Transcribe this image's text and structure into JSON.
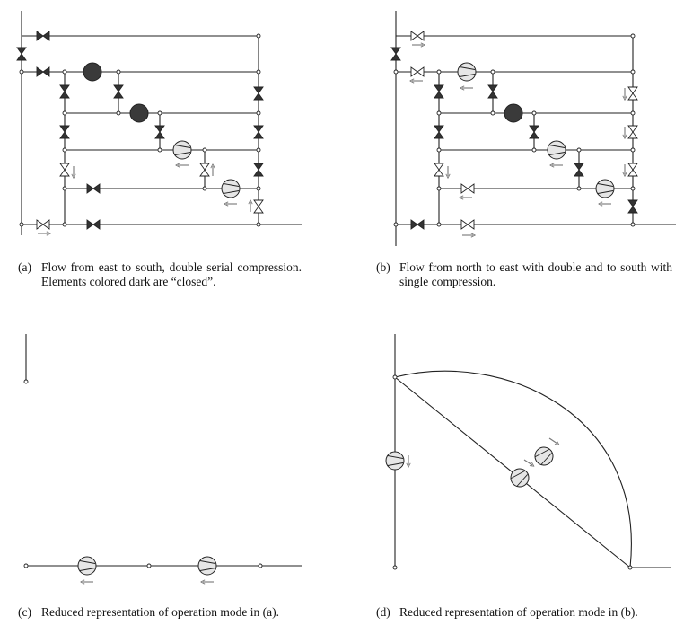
{
  "colors": {
    "line": "#222222",
    "closed_fill": "#333333",
    "open_fill": "#ffffff",
    "compressor_open": "#e6e6e6",
    "compressor_closed": "#3a3a3a",
    "flow_arrow": "#777777"
  },
  "captions": {
    "a": {
      "label": "(a)",
      "text": "Flow from east to south, double serial compression. Elements colored dark are “closed”."
    },
    "b": {
      "label": "(b)",
      "text": "Flow from north to east with double and to south with single compression."
    },
    "c": {
      "label": "(c)",
      "text": "Reduced representation of operation mode in (a)."
    },
    "d": {
      "label": "(d)",
      "text": "Reduced representation of operation mode in (b)."
    }
  },
  "panels": {
    "a": {
      "compressors": [
        "closed",
        "closed",
        "open",
        "open"
      ]
    },
    "b": {
      "compressors": [
        "open",
        "closed",
        "open",
        "open"
      ]
    },
    "c": {
      "compressors": [
        "open",
        "open"
      ]
    },
    "d": {
      "compressors": [
        "open",
        "open",
        "open"
      ]
    }
  }
}
